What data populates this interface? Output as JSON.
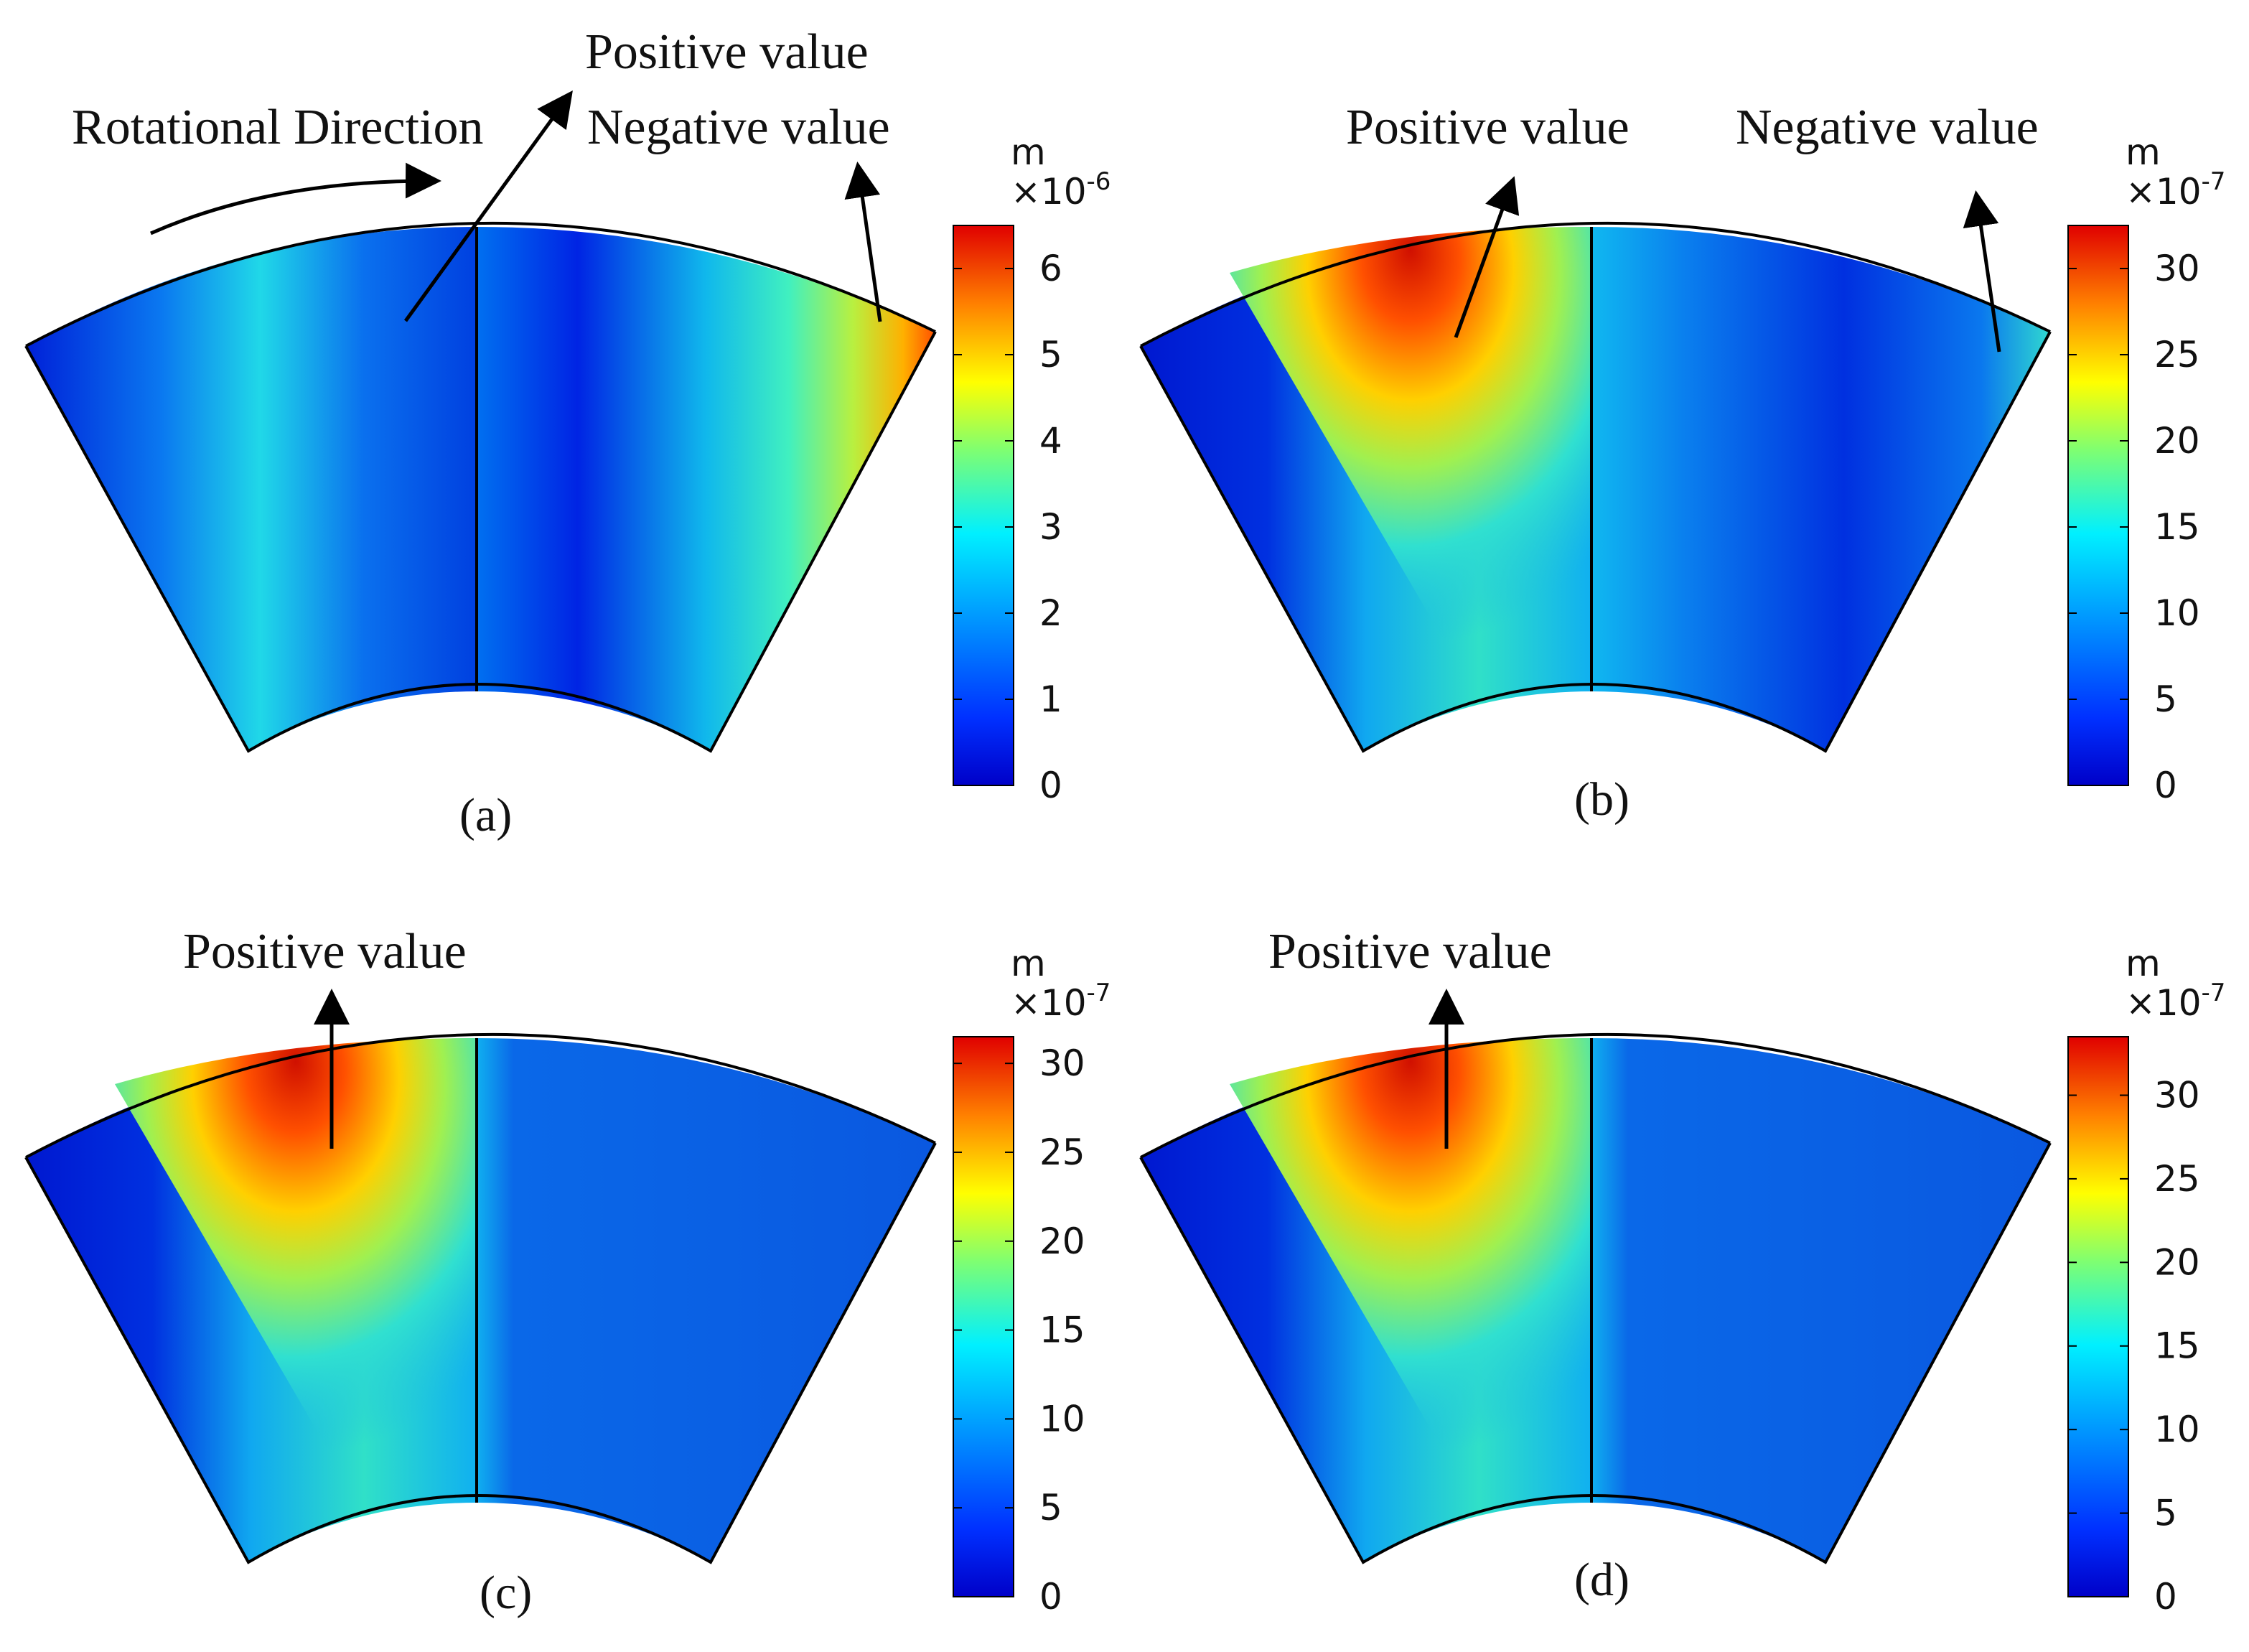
{
  "colors": {
    "jet": [
      "#00008f",
      "#0000ff",
      "#0080ff",
      "#00ffff",
      "#80ff80",
      "#ffff00",
      "#ff8000",
      "#ff0000",
      "#800000"
    ],
    "divider": "#000000",
    "arrow": "#000000"
  },
  "annotations": {
    "rotational_direction": "Rotational Direction",
    "positive_value": "Positive value",
    "negative_value": "Negative value"
  },
  "panels": [
    {
      "id": "a",
      "caption": "(a)",
      "colorbar": {
        "unit": "m",
        "scale_base": "×10",
        "scale_exponent": "-6",
        "min": 0,
        "max": 6.5,
        "ticks": [
          "0",
          "1",
          "2",
          "3",
          "4",
          "5",
          "6"
        ]
      },
      "labels": [
        "Rotational Direction",
        "Positive value",
        "Negative value"
      ]
    },
    {
      "id": "b",
      "caption": "(b)",
      "colorbar": {
        "unit": "m",
        "scale_base": "×10",
        "scale_exponent": "-7",
        "min": 0,
        "max": 32.5,
        "ticks": [
          "0",
          "5",
          "10",
          "15",
          "20",
          "25",
          "30"
        ]
      },
      "labels": [
        "Positive value",
        "Negative value"
      ]
    },
    {
      "id": "c",
      "caption": "(c)",
      "colorbar": {
        "unit": "m",
        "scale_base": "×10",
        "scale_exponent": "-7",
        "min": 0,
        "max": 31.5,
        "ticks": [
          "0",
          "5",
          "10",
          "15",
          "20",
          "25",
          "30"
        ]
      },
      "labels": [
        "Positive value"
      ]
    },
    {
      "id": "d",
      "caption": "(d)",
      "colorbar": {
        "unit": "m",
        "scale_base": "×10",
        "scale_exponent": "-7",
        "min": 0,
        "max": 33.5,
        "ticks": [
          "0",
          "5",
          "10",
          "15",
          "20",
          "25",
          "30"
        ]
      },
      "labels": [
        "Positive value"
      ]
    }
  ]
}
